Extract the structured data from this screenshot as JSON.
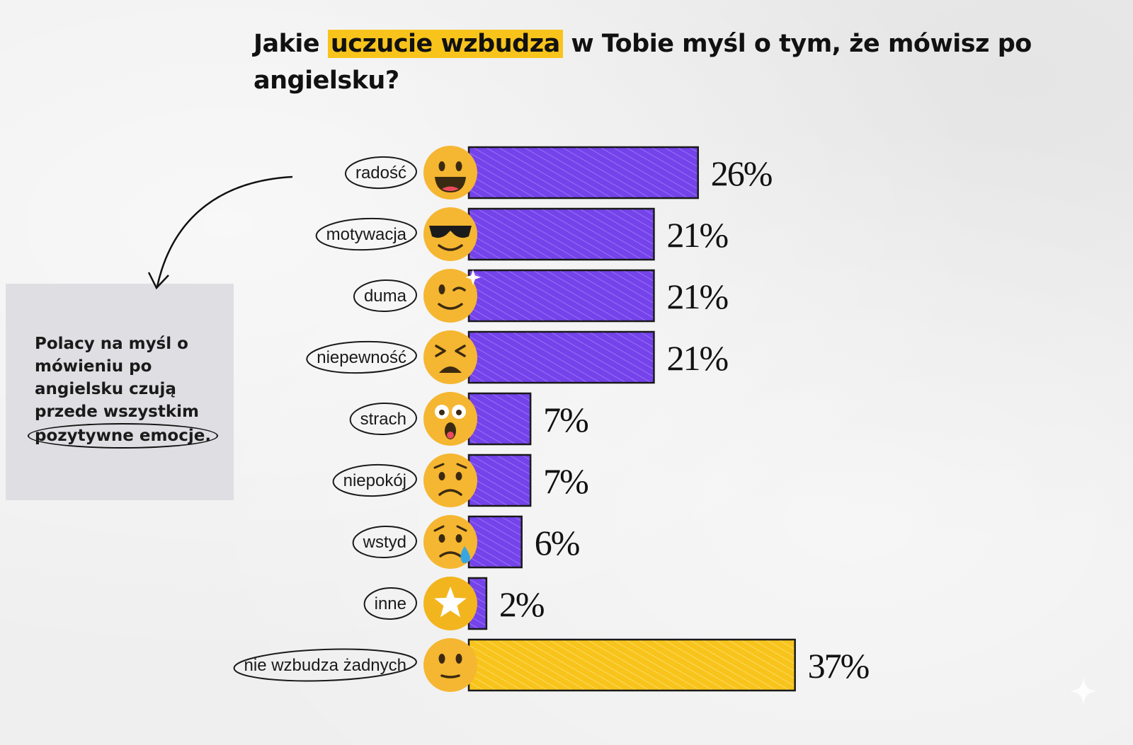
{
  "title": {
    "before": "Jakie ",
    "highlight": "uczucie wzbudza",
    "after": " w Tobie myśl o tym, że mówisz po angielsku?"
  },
  "note": {
    "text": "Polacy na myśl o mówieniu po angielsku czują przede wszystkim",
    "circled": "pozytywne emocje."
  },
  "colors": {
    "bar_primary": "#7443ea",
    "bar_highlight": "#f8c41c",
    "emoji_face": "#f5b631",
    "title_highlight": "#f8c41c"
  },
  "chart_data": {
    "type": "bar",
    "orientation": "horizontal",
    "categories": [
      "radość",
      "motywacja",
      "duma",
      "niepewność",
      "strach",
      "niepokój",
      "wstyd",
      "inne",
      "nie wzbudza żadnych"
    ],
    "values": [
      26,
      21,
      21,
      21,
      7,
      7,
      6,
      2,
      37
    ],
    "value_labels": [
      "26%",
      "21%",
      "21%",
      "21%",
      "7%",
      "7%",
      "6%",
      "2%",
      "37%"
    ],
    "highlight_index": 8,
    "emoji_icons": [
      "grinning-face-icon",
      "sunglasses-face-icon",
      "winking-face-icon",
      "confounded-face-icon",
      "screaming-face-icon",
      "worried-face-icon",
      "sad-sweat-face-icon",
      "star-icon",
      "neutral-face-icon"
    ],
    "grid": false,
    "legend": "none"
  }
}
